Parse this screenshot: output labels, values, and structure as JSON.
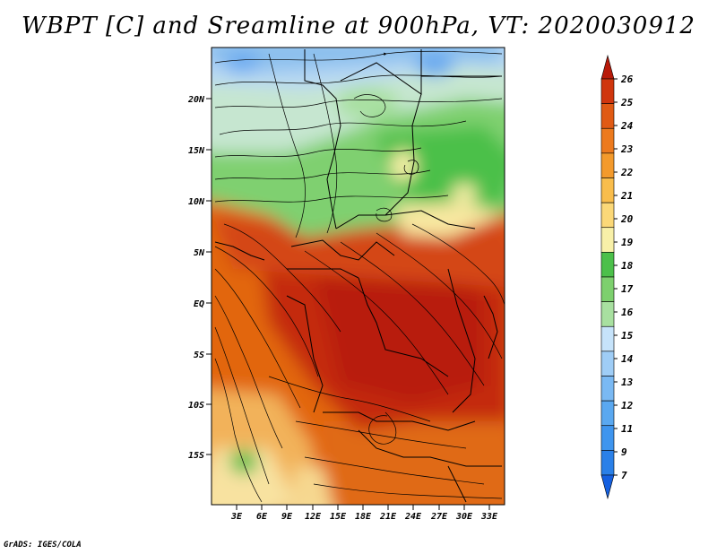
{
  "title": "WBPT [C] and Sreamline at 900hPa, VT: 2020030912",
  "credit": "GrADS: IGES/COLA",
  "map": {
    "lat_labels": [
      "20N",
      "15N",
      "10N",
      "5N",
      "EQ",
      "5S",
      "10S",
      "15S"
    ],
    "lon_labels": [
      "3E",
      "6E",
      "9E",
      "12E",
      "15E",
      "18E",
      "21E",
      "24E",
      "27E",
      "30E",
      "33E"
    ]
  },
  "colorbar": {
    "levels": [
      "7",
      "9",
      "11",
      "12",
      "13",
      "14",
      "15",
      "16",
      "17",
      "18",
      "19",
      "20",
      "21",
      "22",
      "23",
      "24",
      "25",
      "26"
    ],
    "colors": [
      "#1560e0",
      "#2a80e8",
      "#3f95ee",
      "#5aa8f0",
      "#7ab9f3",
      "#9fcdf6",
      "#c6e3fa",
      "#a8e0a0",
      "#7dd06e",
      "#4cc04a",
      "#f8f0a8",
      "#fbd878",
      "#f9bd4c",
      "#f39a2c",
      "#ec7a1e",
      "#e05a14",
      "#d0360e",
      "#b81a0a"
    ]
  }
}
